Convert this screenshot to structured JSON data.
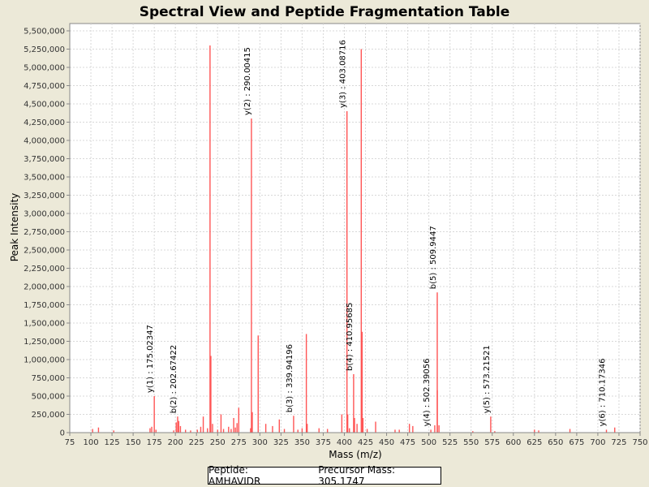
{
  "chart_data": {
    "type": "bar",
    "title": "Spectral View and Peptide Fragmentation Table",
    "xlabel": "Mass (m/z)",
    "ylabel": "Peak Intensity",
    "xlim": [
      75,
      750
    ],
    "ylim": [
      0,
      5600000
    ],
    "x_ticks": [
      75,
      100,
      125,
      150,
      175,
      200,
      225,
      250,
      275,
      300,
      325,
      350,
      375,
      400,
      425,
      450,
      475,
      500,
      525,
      550,
      575,
      600,
      625,
      650,
      675,
      700,
      725,
      750
    ],
    "y_ticks": [
      0,
      250000,
      500000,
      750000,
      1000000,
      1250000,
      1500000,
      1750000,
      2000000,
      2250000,
      2500000,
      2750000,
      3000000,
      3250000,
      3500000,
      3750000,
      4000000,
      4250000,
      4500000,
      4750000,
      5000000,
      5250000,
      5500000
    ],
    "y_tick_labels": [
      "0",
      "250,000",
      "500,000",
      "750,000",
      "1,000,000",
      "1,250,000",
      "1,500,000",
      "1,750,000",
      "2,000,000",
      "2,250,000",
      "2,500,000",
      "2,750,000",
      "3,000,000",
      "3,250,000",
      "3,500,000",
      "3,750,000",
      "4,000,000",
      "4,250,000",
      "4,500,000",
      "4,750,000",
      "5,000,000",
      "5,250,000",
      "5,500,000"
    ],
    "grid": true,
    "peak_color": "#ff5555",
    "peaks": [
      [
        102,
        50000
      ],
      [
        109,
        70000
      ],
      [
        127,
        30000
      ],
      [
        170,
        60000
      ],
      [
        172,
        80000
      ],
      [
        175.02,
        500000
      ],
      [
        177,
        40000
      ],
      [
        198,
        30000
      ],
      [
        201,
        140000
      ],
      [
        202.67,
        220000
      ],
      [
        204,
        160000
      ],
      [
        206,
        90000
      ],
      [
        212,
        40000
      ],
      [
        218,
        30000
      ],
      [
        226,
        40000
      ],
      [
        230,
        80000
      ],
      [
        233,
        220000
      ],
      [
        238,
        60000
      ],
      [
        241,
        5300000
      ],
      [
        242,
        1050000
      ],
      [
        244,
        120000
      ],
      [
        250,
        40000
      ],
      [
        254,
        250000
      ],
      [
        257,
        50000
      ],
      [
        263,
        80000
      ],
      [
        266,
        50000
      ],
      [
        269,
        200000
      ],
      [
        271,
        70000
      ],
      [
        273,
        130000
      ],
      [
        275,
        340000
      ],
      [
        289,
        60000
      ],
      [
        290.0,
        4300000
      ],
      [
        291,
        280000
      ],
      [
        298,
        1330000
      ],
      [
        307,
        120000
      ],
      [
        315,
        90000
      ],
      [
        323,
        180000
      ],
      [
        329,
        50000
      ],
      [
        339.94,
        230000
      ],
      [
        345,
        40000
      ],
      [
        350,
        60000
      ],
      [
        355,
        1350000
      ],
      [
        356,
        120000
      ],
      [
        370,
        60000
      ],
      [
        380,
        50000
      ],
      [
        397,
        250000
      ],
      [
        403.09,
        4400000
      ],
      [
        404,
        250000
      ],
      [
        406,
        60000
      ],
      [
        410.96,
        800000
      ],
      [
        412,
        200000
      ],
      [
        415,
        120000
      ],
      [
        420,
        5250000
      ],
      [
        421,
        1380000
      ],
      [
        422,
        200000
      ],
      [
        427,
        50000
      ],
      [
        437,
        150000
      ],
      [
        460,
        40000
      ],
      [
        465,
        40000
      ],
      [
        477,
        120000
      ],
      [
        481,
        90000
      ],
      [
        502.39,
        40000
      ],
      [
        507,
        100000
      ],
      [
        509.94,
        1920000
      ],
      [
        510,
        580000
      ],
      [
        512,
        100000
      ],
      [
        552,
        20000
      ],
      [
        573.22,
        220000
      ],
      [
        578,
        20000
      ],
      [
        625,
        40000
      ],
      [
        630,
        30000
      ],
      [
        667,
        50000
      ],
      [
        710.17,
        40000
      ],
      [
        720,
        70000
      ]
    ],
    "annotations": [
      {
        "x": 175.02,
        "y": 500000,
        "label": "y(1) : 175.02347"
      },
      {
        "x": 202.67,
        "y": 220000,
        "label": "b(2) : 202.67422"
      },
      {
        "x": 290.0,
        "y": 4300000,
        "label": "y(2) : 290.00415"
      },
      {
        "x": 339.94,
        "y": 230000,
        "label": "b(3) : 339.94196"
      },
      {
        "x": 403.09,
        "y": 4400000,
        "label": "y(3) : 403.08716"
      },
      {
        "x": 410.96,
        "y": 800000,
        "label": "b(4) : 410.95685"
      },
      {
        "x": 502.39,
        "y": 40000,
        "label": "y(4) : 502.39056"
      },
      {
        "x": 509.94,
        "y": 1920000,
        "label": "b(5) : 509.9447"
      },
      {
        "x": 573.22,
        "y": 220000,
        "label": "y(5) : 573.21521"
      },
      {
        "x": 710.17,
        "y": 40000,
        "label": "y(6) : 710.17346"
      }
    ]
  },
  "legend": {
    "peptide": "Peptide: AMHAVIDR",
    "precursor": "Precursor Mass: 305.1747"
  }
}
